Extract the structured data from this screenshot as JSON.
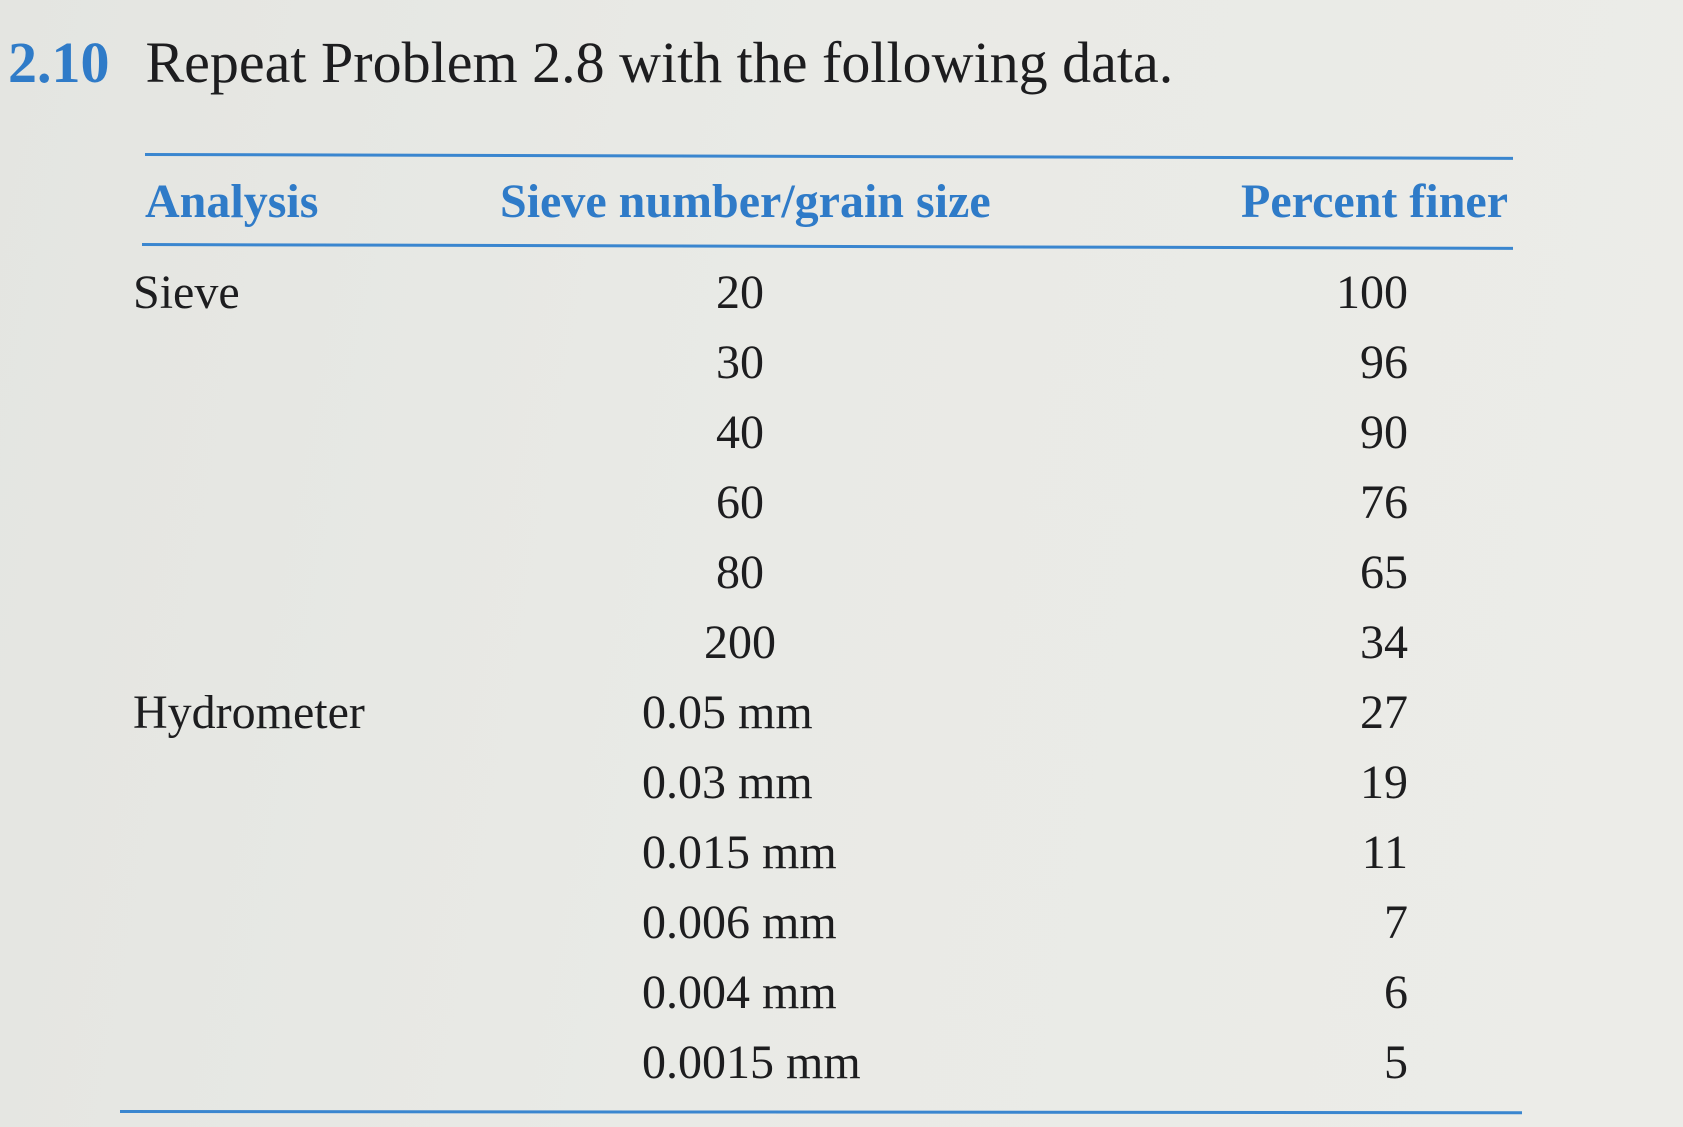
{
  "problem": {
    "number": "2.10",
    "statement": "Repeat Problem 2.8 with the following data."
  },
  "table": {
    "headers": {
      "analysis": "Analysis",
      "size": "Sieve number/grain size",
      "percent": "Percent finer"
    },
    "rows": [
      {
        "analysis": "Sieve",
        "size": "20",
        "percent": "100"
      },
      {
        "analysis": "",
        "size": "30",
        "percent": "96"
      },
      {
        "analysis": "",
        "size": "40",
        "percent": "90"
      },
      {
        "analysis": "",
        "size": "60",
        "percent": "76"
      },
      {
        "analysis": "",
        "size": "80",
        "percent": "65"
      },
      {
        "analysis": "",
        "size": "200",
        "percent": "34"
      },
      {
        "analysis": "Hydrometer",
        "size": "0.05 mm",
        "percent": "27"
      },
      {
        "analysis": "",
        "size": "0.03 mm",
        "percent": "19"
      },
      {
        "analysis": "",
        "size": "0.015 mm",
        "percent": "11"
      },
      {
        "analysis": "",
        "size": "0.006 mm",
        "percent": "7"
      },
      {
        "analysis": "",
        "size": "0.004 mm",
        "percent": "6"
      },
      {
        "analysis": "",
        "size": "0.0015 mm",
        "percent": "5"
      }
    ]
  },
  "colors": {
    "accent": "#2f7bc8",
    "text": "#1d1d1f",
    "paper": "#e9eae6"
  }
}
